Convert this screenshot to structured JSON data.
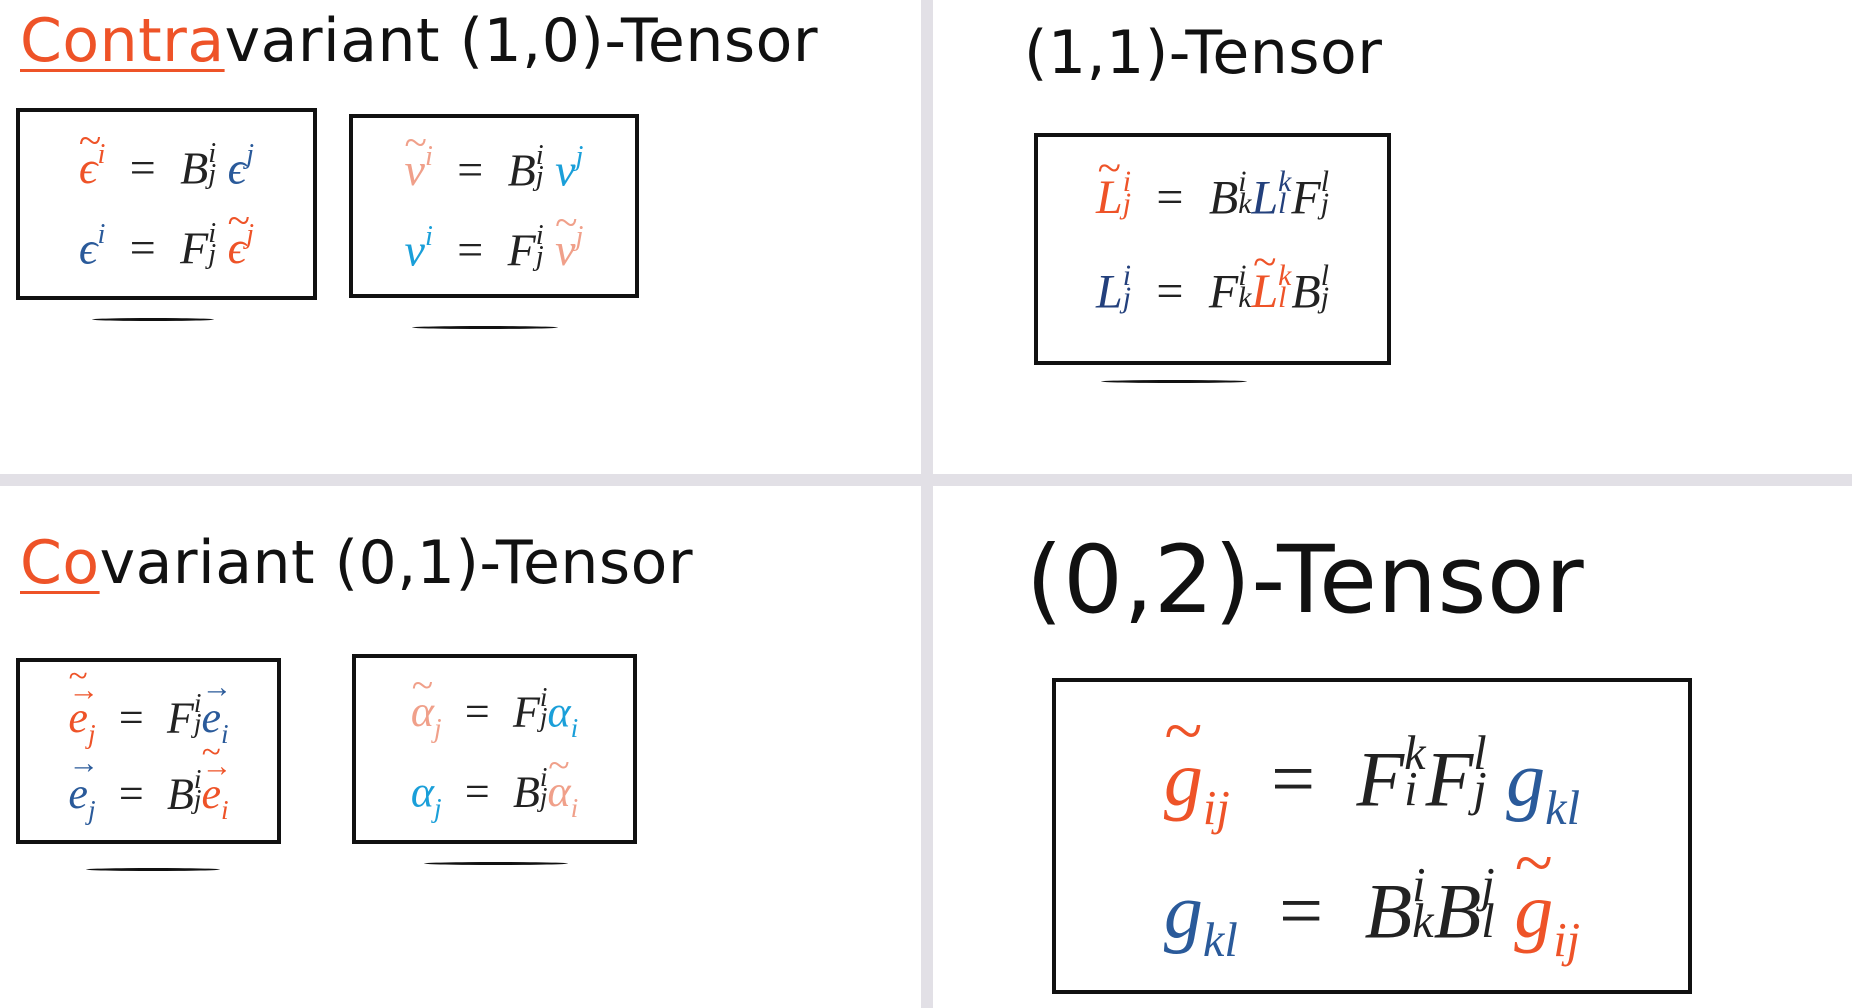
{
  "panels": {
    "contravariant": {
      "title_highlight": "Contra",
      "title_rest": "variant (1,0)-Tensor",
      "basis_box": {
        "eq1": {
          "lhs": "ϵ",
          "lhs_sup": "i",
          "op": "=",
          "m": "B",
          "m_sup": "i",
          "m_sub": "j",
          "rhs": "ϵ",
          "rhs_sup": "j"
        },
        "eq2": {
          "lhs": "ϵ",
          "lhs_sup": "i",
          "op": "=",
          "m": "F",
          "m_sup": "i",
          "m_sub": "j",
          "rhs": "ϵ",
          "rhs_sup": "j"
        }
      },
      "vector_box": {
        "eq1": {
          "lhs": "v",
          "lhs_sup": "i",
          "op": "=",
          "m": "B",
          "m_sup": "i",
          "m_sub": "j",
          "rhs": "v",
          "rhs_sup": "j"
        },
        "eq2": {
          "lhs": "v",
          "lhs_sup": "i",
          "op": "=",
          "m": "F",
          "m_sup": "i",
          "m_sub": "j",
          "rhs": "v",
          "rhs_sup": "j"
        }
      }
    },
    "mixed": {
      "title": "(1,1)-Tensor",
      "eq1": {
        "lhs": "L",
        "lhs_sup": "i",
        "lhs_sub": "j",
        "op": "=",
        "a": "B",
        "a_sup": "i",
        "a_sub": "k",
        "b": "L",
        "b_sup": "k",
        "b_sub": "l",
        "c": "F",
        "c_sup": "l",
        "c_sub": "j"
      },
      "eq2": {
        "lhs": "L",
        "lhs_sup": "i",
        "lhs_sub": "j",
        "op": "=",
        "a": "F",
        "a_sup": "i",
        "a_sub": "k",
        "b": "L",
        "b_sup": "k",
        "b_sub": "l",
        "c": "B",
        "c_sup": "l",
        "c_sub": "j"
      }
    },
    "covariant": {
      "title_highlight": "Co",
      "title_rest": "variant (0,1)-Tensor",
      "basis_box": {
        "eq1": {
          "lhs": "e",
          "lhs_sub": "j",
          "op": "=",
          "m": "F",
          "m_sup": "i",
          "m_sub": "j",
          "rhs": "e",
          "rhs_sub": "i"
        },
        "eq2": {
          "lhs": "e",
          "lhs_sub": "j",
          "op": "=",
          "m": "B",
          "m_sup": "i",
          "m_sub": "j",
          "rhs": "e",
          "rhs_sub": "i"
        }
      },
      "covector_box": {
        "eq1": {
          "lhs": "α",
          "lhs_sub": "j",
          "op": "=",
          "m": "F",
          "m_sup": "i",
          "m_sub": "j",
          "rhs": "α",
          "rhs_sub": "i"
        },
        "eq2": {
          "lhs": "α",
          "lhs_sub": "j",
          "op": "=",
          "m": "B",
          "m_sup": "i",
          "m_sub": "j",
          "rhs": "α",
          "rhs_sub": "i"
        }
      }
    },
    "bilinear": {
      "title": "(0,2)-Tensor",
      "eq1": {
        "lhs": "g",
        "lhs_sub": "ij",
        "op": "=",
        "a": "F",
        "a_sup": "k",
        "a_sub": "i",
        "b": "F",
        "b_sup": "l",
        "b_sub": "j",
        "rhs": "g",
        "rhs_sub": "kl"
      },
      "eq2": {
        "lhs": "g",
        "lhs_sub": "kl",
        "op": "=",
        "a": "B",
        "a_sup": "i",
        "a_sub": "k",
        "b": "B",
        "b_sup": "j",
        "b_sub": "l",
        "rhs": "g",
        "rhs_sub": "ij"
      }
    }
  },
  "colors": {
    "tilde_orange": "#ee5328",
    "basis_blue": "#2a5a9a",
    "navy": "#23407c",
    "tilde_pink": "#f0a08a",
    "component_cyan": "#1a9fd9",
    "divider": "#e2e0e6"
  }
}
